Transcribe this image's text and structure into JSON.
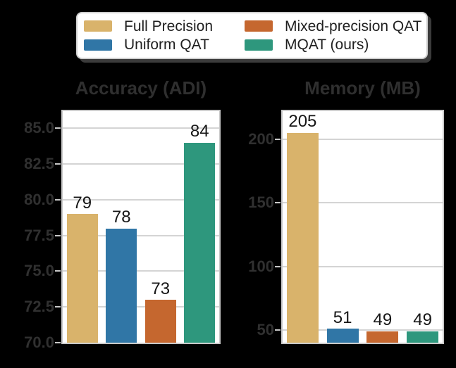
{
  "figure": {
    "background_color": "#000000",
    "panel_background": "#ffffff"
  },
  "legend": {
    "items": [
      {
        "label": "Full Precision",
        "color": "#d9b36b"
      },
      {
        "label": "Uniform QAT",
        "color": "#3076a6"
      },
      {
        "label": "Mixed-precision QAT",
        "color": "#c5672f"
      },
      {
        "label": "MQAT (ours)",
        "color": "#2e977d"
      }
    ]
  },
  "chart_data": [
    {
      "type": "bar",
      "title": "Accuracy (ADI)",
      "categories": [
        "Full Precision",
        "Uniform QAT",
        "Mixed-precision QAT",
        "MQAT (ours)"
      ],
      "values": [
        79,
        78,
        73,
        84
      ],
      "bar_labels": [
        "79",
        "78",
        "73",
        "84"
      ],
      "colors": [
        "#d9b36b",
        "#3076a6",
        "#c5672f",
        "#2e977d"
      ],
      "ylim": [
        70,
        86.2
      ],
      "yticks": [
        70,
        72.5,
        75,
        77.5,
        80,
        82.5,
        85
      ],
      "ytick_labels": [
        "70.0",
        "72.5",
        "75.0",
        "77.5",
        "80.0",
        "82.5",
        "85.0"
      ],
      "grid": true,
      "xlabel": "",
      "ylabel": "",
      "legend_position": "above figure, shared"
    },
    {
      "type": "bar",
      "title": "Memory (MB)",
      "categories": [
        "Full Precision",
        "Uniform QAT",
        "Mixed-precision QAT",
        "MQAT (ours)"
      ],
      "values": [
        205,
        51,
        49,
        49
      ],
      "bar_labels": [
        "205",
        "51",
        "49",
        "49"
      ],
      "colors": [
        "#d9b36b",
        "#3076a6",
        "#c5672f",
        "#2e977d"
      ],
      "ylim": [
        40,
        222
      ],
      "yticks": [
        50,
        100,
        150,
        200
      ],
      "ytick_labels": [
        "50",
        "100",
        "150",
        "200"
      ],
      "grid": true,
      "xlabel": "",
      "ylabel": "",
      "legend_position": "above figure, shared"
    }
  ]
}
